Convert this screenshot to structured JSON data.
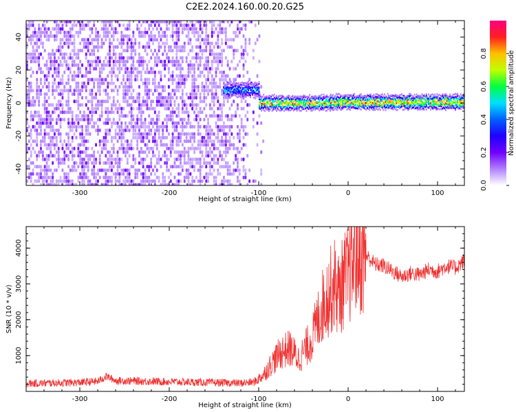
{
  "title": "C2E2.2024.160.00.20.G25",
  "chart_data": [
    {
      "type": "heatmap",
      "title": "C2E2.2024.160.00.20.G25",
      "xlabel": "Height of straight line (km)",
      "ylabel": "Frequency (Hz)",
      "xlim": [
        -360,
        130
      ],
      "ylim": [
        -50,
        50
      ],
      "x_ticks": [
        -300,
        -200,
        -100,
        0,
        100
      ],
      "y_ticks": [
        -40,
        -20,
        0,
        20,
        40
      ],
      "colorbar": {
        "label": "Normalized spectral amplitude",
        "range": [
          0,
          1
        ],
        "ticks": [
          "0.0",
          "0.2",
          "0.4",
          "0.6",
          "0.8"
        ],
        "colors": [
          "#ffffff",
          "#b080ff",
          "#7000ff",
          "#2000ff",
          "#0060ff",
          "#00e0ff",
          "#00ff40",
          "#c0ff00",
          "#ffc000",
          "#ff2020",
          "#ff0080"
        ]
      },
      "features": {
        "noise_region_x": [
          -360,
          -95
        ],
        "ridge_frequency_hz": 0,
        "ridge_segments": [
          {
            "x_start": -140,
            "x_end": -100,
            "freq_center": 8,
            "peak_amplitude": 0.55
          },
          {
            "x_start": -100,
            "x_end": -20,
            "freq_center": 0,
            "peak_amplitude": 0.9
          },
          {
            "x_start": -20,
            "x_end": 130,
            "freq_center": 0.5,
            "peak_amplitude": 0.95
          }
        ]
      }
    },
    {
      "type": "line",
      "xlabel": "Height of straight line (km)",
      "ylabel": "SNR (10 * v/v)",
      "xlim": [
        -360,
        130
      ],
      "ylim": [
        0,
        4600
      ],
      "x_ticks": [
        -300,
        -200,
        -100,
        0,
        100
      ],
      "y_ticks": [
        1000,
        2000,
        3000,
        4000
      ],
      "series_color": "#f03030",
      "x": [
        -360,
        -340,
        -320,
        -300,
        -280,
        -270,
        -260,
        -240,
        -220,
        -200,
        -180,
        -160,
        -140,
        -120,
        -105,
        -95,
        -85,
        -75,
        -65,
        -55,
        -45,
        -40,
        -35,
        -30,
        -25,
        -20,
        -15,
        -10,
        -5,
        0,
        5,
        10,
        15,
        20,
        30,
        40,
        50,
        60,
        70,
        80,
        90,
        100,
        110,
        120,
        130
      ],
      "values": [
        220,
        230,
        240,
        250,
        280,
        420,
        300,
        290,
        280,
        270,
        260,
        250,
        240,
        230,
        260,
        450,
        800,
        1100,
        1200,
        900,
        1300,
        1500,
        1900,
        2300,
        2600,
        2800,
        3000,
        2700,
        3100,
        3200,
        3600,
        3900,
        3700,
        3800,
        3550,
        3500,
        3350,
        3200,
        3300,
        3250,
        3400,
        3350,
        3500,
        3450,
        3650
      ]
    }
  ]
}
